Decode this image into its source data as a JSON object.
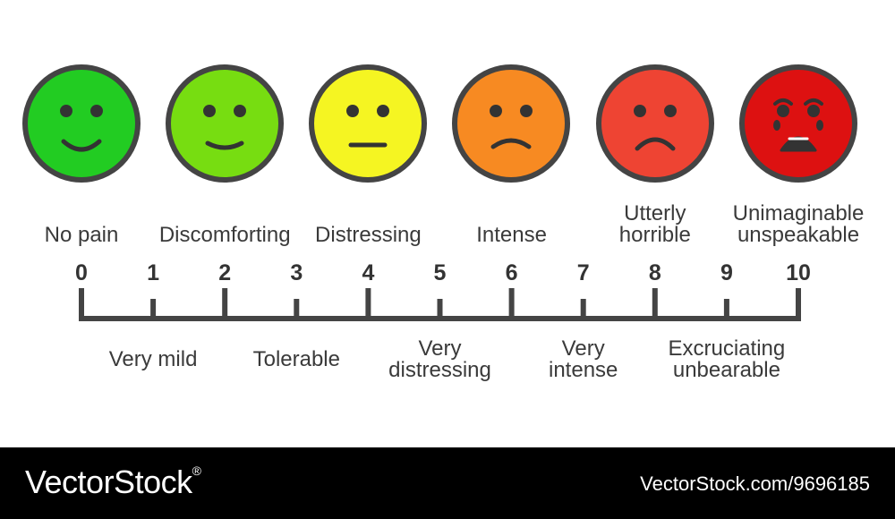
{
  "faces": [
    {
      "color": "#22cc22",
      "mouth": "big-smile",
      "icon": "happy-face-icon"
    },
    {
      "color": "#77dd11",
      "mouth": "smile",
      "icon": "slight-smile-face-icon"
    },
    {
      "color": "#f5f522",
      "mouth": "flat",
      "icon": "neutral-face-icon"
    },
    {
      "color": "#f78a22",
      "mouth": "frown",
      "icon": "frown-face-icon"
    },
    {
      "color": "#ee4433",
      "mouth": "big-frown",
      "icon": "sad-face-icon"
    },
    {
      "color": "#dd1111",
      "mouth": "crying",
      "icon": "crying-face-icon"
    }
  ],
  "outline_color": "#444444",
  "scale": {
    "min": 0,
    "max": 10,
    "ticks": [
      "0",
      "1",
      "2",
      "3",
      "4",
      "5",
      "6",
      "7",
      "8",
      "9",
      "10"
    ]
  },
  "labels_top": [
    {
      "value": 0,
      "lines": [
        "No pain"
      ]
    },
    {
      "value": 2,
      "lines": [
        "Discomforting"
      ]
    },
    {
      "value": 4,
      "lines": [
        "Distressing"
      ]
    },
    {
      "value": 6,
      "lines": [
        "Intense"
      ]
    },
    {
      "value": 8,
      "lines": [
        "Utterly",
        "horrible"
      ]
    },
    {
      "value": 10,
      "lines": [
        "Unimaginable",
        "unspeakable"
      ]
    }
  ],
  "labels_bottom": [
    {
      "value": 1,
      "lines": [
        "Very mild"
      ]
    },
    {
      "value": 3,
      "lines": [
        "Tolerable"
      ]
    },
    {
      "value": 5,
      "lines": [
        "Very",
        "distressing"
      ]
    },
    {
      "value": 7,
      "lines": [
        "Very",
        "intense"
      ]
    },
    {
      "value": 9,
      "lines": [
        "Excruciating",
        "unbearable"
      ]
    }
  ],
  "footer": {
    "brand": "VectorStock",
    "registered_mark": "®",
    "url": "VectorStock.com/9696185"
  }
}
